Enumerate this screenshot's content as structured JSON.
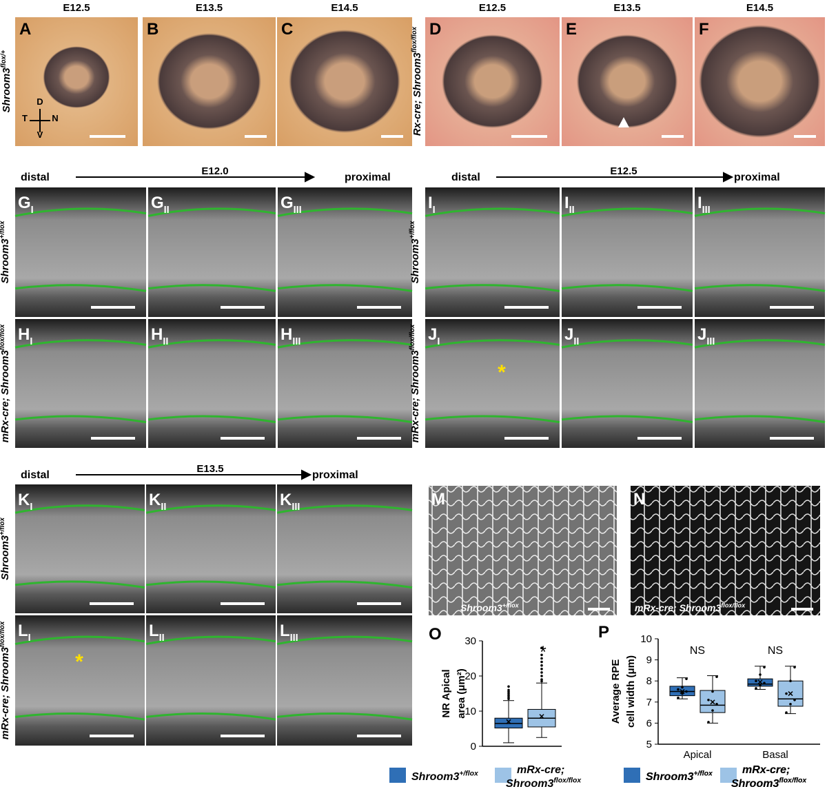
{
  "section1": {
    "stages": [
      "E12.5",
      "E13.5",
      "E14.5",
      "E12.5",
      "E13.5",
      "E14.5"
    ],
    "letters": [
      "A",
      "B",
      "C",
      "D",
      "E",
      "F"
    ],
    "genotypes": [
      {
        "base": "Shroom3",
        "sup": "flox/+"
      },
      {
        "pre": "Rx-cre; ",
        "base": "Shroom3",
        "sup": "flox/flox"
      }
    ],
    "orientation": [
      "D",
      "T",
      "N",
      "V"
    ]
  },
  "section2_left": {
    "distal": "distal",
    "stage": "E12.0",
    "proximal": "proximal",
    "rows": [
      {
        "genotype": {
          "base": "Shroom3",
          "sup": "+/flox"
        },
        "letters": [
          {
            "base": "G",
            "sub": "I"
          },
          {
            "base": "G",
            "sub": "II"
          },
          {
            "base": "G",
            "sub": "III"
          }
        ]
      },
      {
        "genotype": {
          "pre": "mRx-cre; ",
          "base": "Shroom3",
          "sup": "flox/flox"
        },
        "letters": [
          {
            "base": "H",
            "sub": "I"
          },
          {
            "base": "H",
            "sub": "II"
          },
          {
            "base": "H",
            "sub": "III"
          }
        ]
      }
    ]
  },
  "section2_right": {
    "distal": "distal",
    "stage": "E12.5",
    "proximal": "proximal",
    "asterisk": "*",
    "rows": [
      {
        "genotype": {
          "base": "Shroom3",
          "sup": "+/flox"
        },
        "letters": [
          {
            "base": "I",
            "sub": "I"
          },
          {
            "base": "I",
            "sub": "II"
          },
          {
            "base": "I",
            "sub": "III"
          }
        ]
      },
      {
        "genotype": {
          "pre": "mRx-cre; ",
          "base": "Shroom3",
          "sup": "flox/flox"
        },
        "letters": [
          {
            "base": "J",
            "sub": "I"
          },
          {
            "base": "J",
            "sub": "II"
          },
          {
            "base": "J",
            "sub": "III"
          }
        ]
      }
    ]
  },
  "section3": {
    "distal": "distal",
    "stage": "E13.5",
    "proximal": "proximal",
    "asterisk": "*",
    "rows": [
      {
        "genotype": {
          "base": "Shroom3",
          "sup": "+/flox"
        },
        "letters": [
          {
            "base": "K",
            "sub": "I"
          },
          {
            "base": "K",
            "sub": "II"
          },
          {
            "base": "K",
            "sub": "III"
          }
        ]
      },
      {
        "genotype": {
          "pre": "mRx-cre; ",
          "base": "Shroom3",
          "sup": "flox/flox"
        },
        "letters": [
          {
            "base": "L",
            "sub": "I"
          },
          {
            "base": "L",
            "sub": "II"
          },
          {
            "base": "L",
            "sub": "III"
          }
        ]
      }
    ]
  },
  "panel_m": {
    "letter": "M",
    "caption": {
      "base": "Shroom3",
      "sup": "+/flox"
    }
  },
  "panel_n": {
    "letter": "N",
    "caption": {
      "pre": "mRx-cre; ",
      "base": "Shroom3",
      "sup": "flox/flox"
    }
  },
  "chart_o": {
    "type": "box",
    "letter": "O",
    "ylabel": [
      "NR Apical",
      "area (μm²)"
    ],
    "ylim": [
      0,
      30
    ],
    "yticks": [
      0,
      10,
      20,
      30
    ],
    "annotation": "*",
    "series": [
      {
        "name": {
          "base": "Shroom3",
          "sup": "+/flox"
        },
        "color": "#2f6fb6",
        "boxes": [
          {
            "min": 1,
            "q1": 5.2,
            "median": 6.5,
            "q3": 8,
            "max": 13,
            "mean": 7,
            "outliers": [
              13.5,
              14,
              14.5,
              15,
              15.5,
              16,
              17
            ]
          }
        ]
      },
      {
        "name": {
          "pre": "mRx-cre;",
          "base": "Shroom3",
          "sup": "flox/flox"
        },
        "color": "#9dc3e6",
        "boxes": [
          {
            "min": 2.5,
            "q1": 5.5,
            "median": 8,
            "q3": 10.5,
            "max": 18,
            "mean": 8.5,
            "outliers": [
              18.5,
              19,
              20,
              21,
              22,
              23,
              24,
              25,
              26,
              28
            ]
          }
        ]
      }
    ]
  },
  "chart_p": {
    "type": "box",
    "letter": "P",
    "ylabel": [
      "Average RPE",
      "cell width (μm)"
    ],
    "ylim": [
      5,
      10
    ],
    "yticks": [
      5,
      6,
      7,
      8,
      9,
      10
    ],
    "categories": [
      "Apical",
      "Basal"
    ],
    "annotations": [
      "NS",
      "NS"
    ],
    "series": [
      {
        "name": {
          "base": "Shroom3",
          "sup": "+/flox"
        },
        "color": "#2f6fb6",
        "boxes": [
          {
            "min": 7.15,
            "q1": 7.3,
            "median": 7.5,
            "q3": 7.75,
            "max": 8.15,
            "mean": 7.5,
            "points": [
              7.2,
              7.4,
              7.5,
              7.6,
              7.7,
              8.1
            ]
          },
          {
            "min": 7.6,
            "q1": 7.75,
            "median": 7.85,
            "q3": 8.1,
            "max": 8.7,
            "mean": 7.95,
            "points": [
              7.65,
              7.8,
              7.9,
              8,
              8.3,
              8.65
            ]
          }
        ]
      },
      {
        "name": {
          "pre": "mRx-cre;",
          "base": "Shroom3",
          "sup": "flox/flox"
        },
        "color": "#9dc3e6",
        "boxes": [
          {
            "min": 6,
            "q1": 6.5,
            "median": 6.85,
            "q3": 7.55,
            "max": 8.25,
            "mean": 7,
            "points": [
              6.05,
              6.6,
              6.9,
              7.1,
              7.5,
              8.2
            ]
          },
          {
            "min": 6.45,
            "q1": 6.8,
            "median": 7.15,
            "q3": 8,
            "max": 8.7,
            "mean": 7.4,
            "points": [
              6.5,
              6.9,
              7.1,
              7.4,
              8,
              8.65
            ]
          }
        ]
      }
    ]
  }
}
